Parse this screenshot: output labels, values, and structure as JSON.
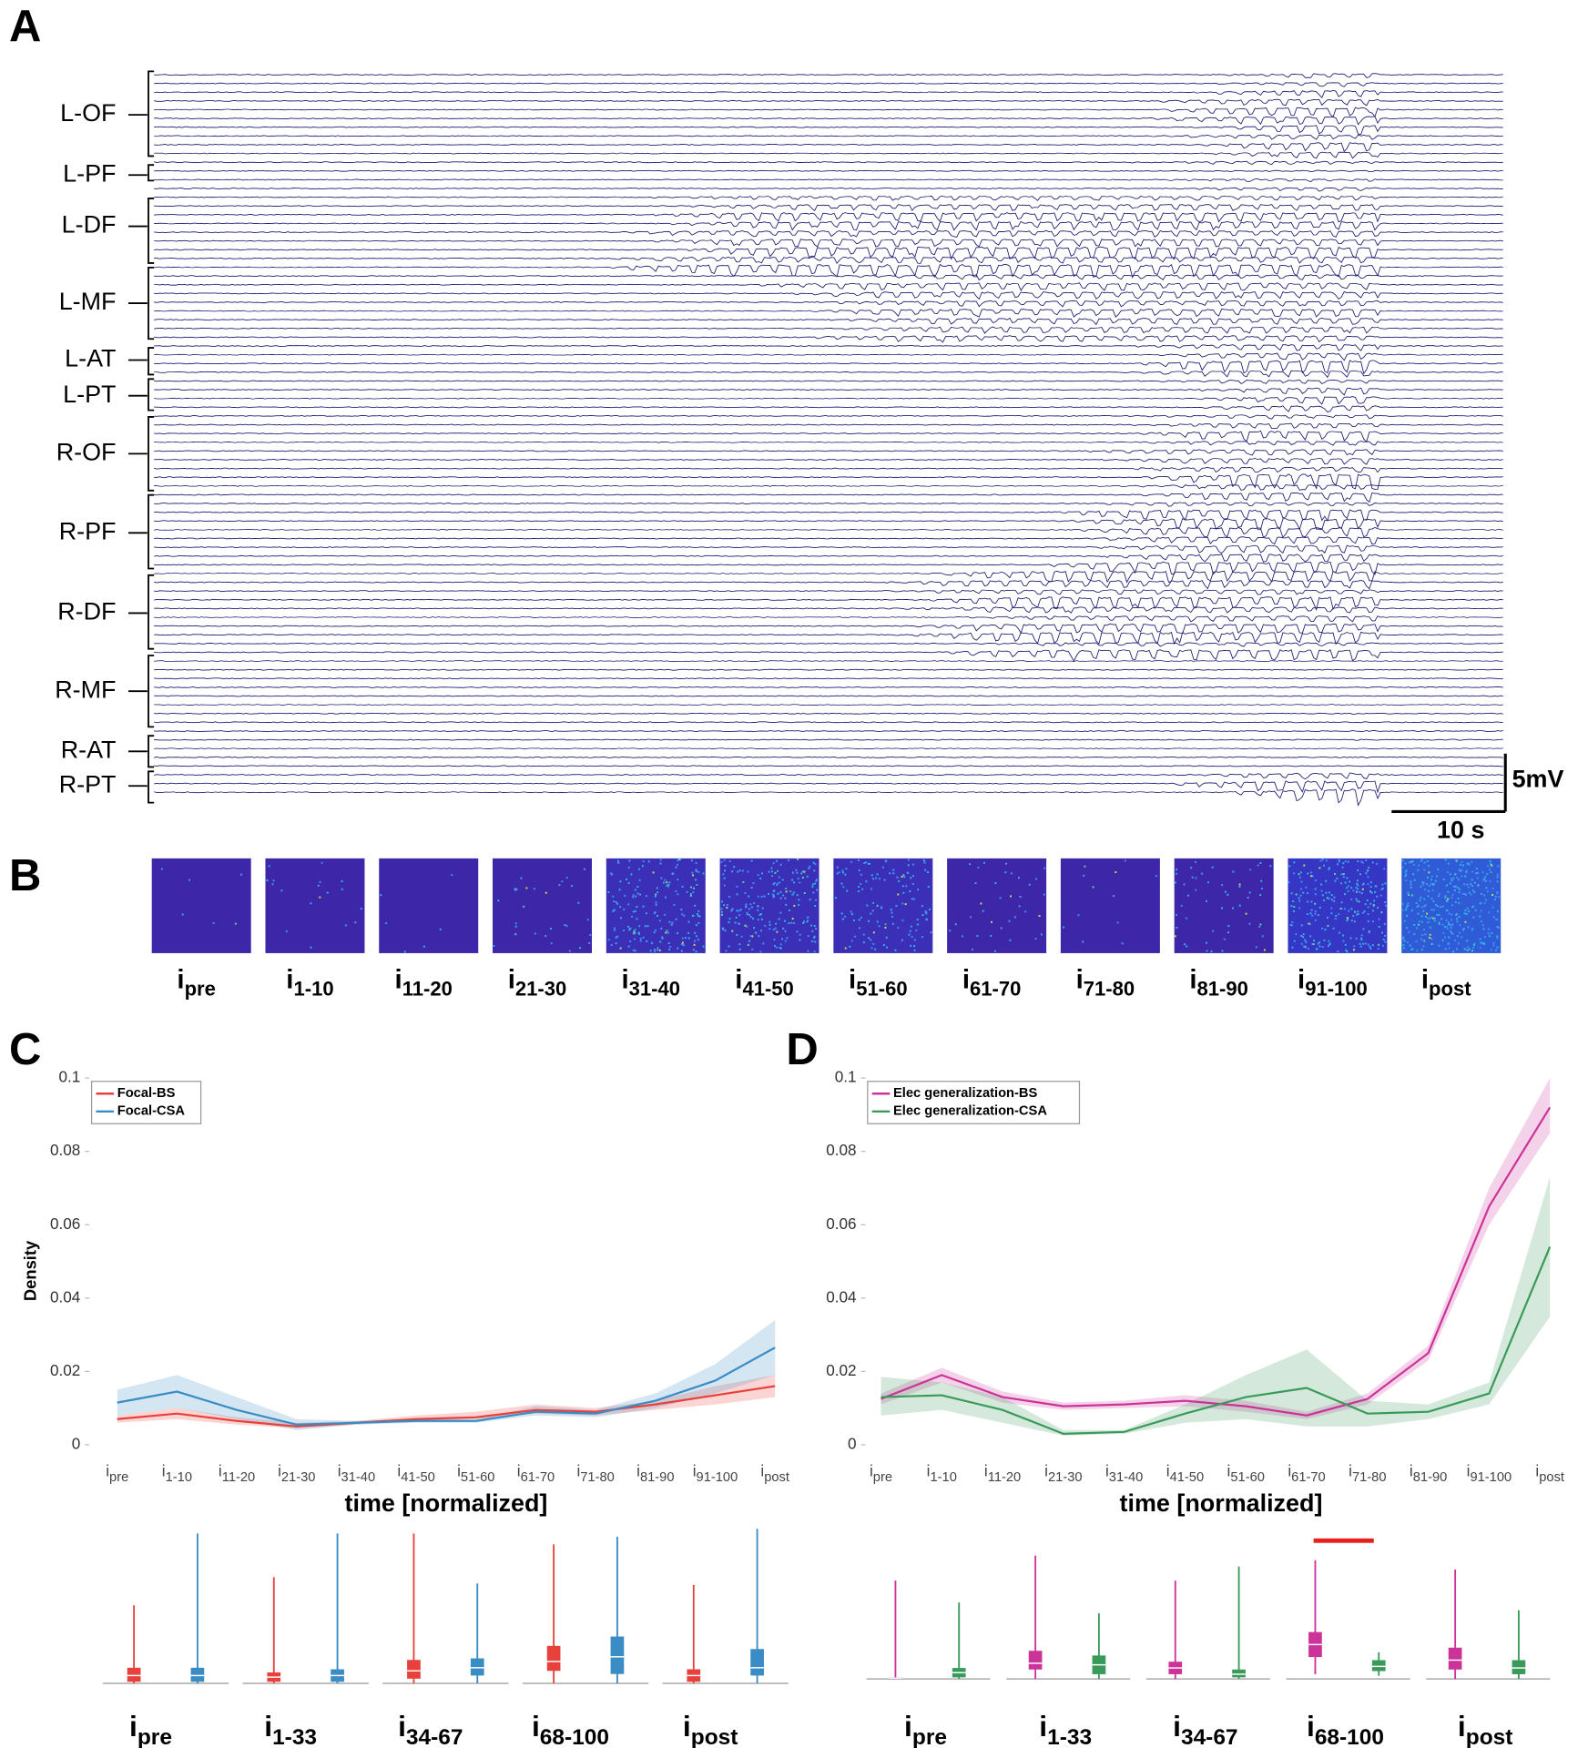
{
  "panel_labels": [
    "A",
    "B",
    "C",
    "D"
  ],
  "panel_a": {
    "groups": [
      "L-OF",
      "L-PF",
      "L-DF",
      "L-MF",
      "L-AT",
      "L-PT",
      "R-OF",
      "R-PF",
      "R-DF",
      "R-MF",
      "R-AT",
      "R-PT"
    ],
    "scale_y": "5mV",
    "scale_x": "10 s"
  },
  "panel_b": {
    "labels": [
      {
        "main": "i",
        "sub": "pre"
      },
      {
        "main": "i",
        "sub": "1-10"
      },
      {
        "main": "i",
        "sub": "11-20"
      },
      {
        "main": "i",
        "sub": "21-30"
      },
      {
        "main": "i",
        "sub": "31-40"
      },
      {
        "main": "i",
        "sub": "41-50"
      },
      {
        "main": "i",
        "sub": "51-60"
      },
      {
        "main": "i",
        "sub": "61-70"
      },
      {
        "main": "i",
        "sub": "71-80"
      },
      {
        "main": "i",
        "sub": "81-90"
      },
      {
        "main": "i",
        "sub": "91-100"
      },
      {
        "main": "i",
        "sub": "post"
      }
    ]
  },
  "chart_data": [
    {
      "type": "line",
      "ylabel": "Density",
      "xlabel": "time [normalized]",
      "categories": [
        {
          "main": "i",
          "sub": "pre"
        },
        {
          "main": "i",
          "sub": "1-10"
        },
        {
          "main": "i",
          "sub": "11-20"
        },
        {
          "main": "i",
          "sub": "21-30"
        },
        {
          "main": "i",
          "sub": "31-40"
        },
        {
          "main": "i",
          "sub": "41-50"
        },
        {
          "main": "i",
          "sub": "51-60"
        },
        {
          "main": "i",
          "sub": "61-70"
        },
        {
          "main": "i",
          "sub": "71-80"
        },
        {
          "main": "i",
          "sub": "81-90"
        },
        {
          "main": "i",
          "sub": "91-100"
        },
        {
          "main": "i",
          "sub": "post"
        }
      ],
      "ylim": [
        0,
        0.1
      ],
      "yticks": [
        0,
        0.02,
        0.04,
        0.06,
        0.08,
        0.1
      ],
      "legend": "upper left",
      "series": [
        {
          "name": "Focal-BS",
          "color": "#e8413b",
          "values": [
            0.007,
            0.0085,
            0.0065,
            0.005,
            0.006,
            0.007,
            0.0075,
            0.0095,
            0.009,
            0.011,
            0.0135,
            0.016
          ],
          "lower": [
            0.006,
            0.007,
            0.0055,
            0.0045,
            0.0055,
            0.0065,
            0.007,
            0.0085,
            0.008,
            0.0095,
            0.011,
            0.013
          ],
          "upper": [
            0.008,
            0.01,
            0.0075,
            0.006,
            0.0065,
            0.008,
            0.009,
            0.011,
            0.01,
            0.012,
            0.016,
            0.019
          ]
        },
        {
          "name": "Focal-CSA",
          "color": "#3a8cc4",
          "values": [
            0.0115,
            0.0145,
            0.0095,
            0.0055,
            0.006,
            0.0065,
            0.0065,
            0.009,
            0.0085,
            0.012,
            0.0175,
            0.0265
          ],
          "lower": [
            0.008,
            0.01,
            0.007,
            0.004,
            0.0055,
            0.006,
            0.006,
            0.008,
            0.0075,
            0.01,
            0.014,
            0.019
          ],
          "upper": [
            0.015,
            0.019,
            0.013,
            0.007,
            0.0065,
            0.007,
            0.007,
            0.0105,
            0.0095,
            0.014,
            0.022,
            0.034
          ]
        }
      ]
    },
    {
      "type": "line",
      "xlabel": "time [normalized]",
      "categories": [
        {
          "main": "i",
          "sub": "pre"
        },
        {
          "main": "i",
          "sub": "1-10"
        },
        {
          "main": "i",
          "sub": "11-20"
        },
        {
          "main": "i",
          "sub": "21-30"
        },
        {
          "main": "i",
          "sub": "31-40"
        },
        {
          "main": "i",
          "sub": "41-50"
        },
        {
          "main": "i",
          "sub": "51-60"
        },
        {
          "main": "i",
          "sub": "61-70"
        },
        {
          "main": "i",
          "sub": "71-80"
        },
        {
          "main": "i",
          "sub": "81-90"
        },
        {
          "main": "i",
          "sub": "91-100"
        },
        {
          "main": "i",
          "sub": "post"
        }
      ],
      "ylim": [
        0,
        0.1
      ],
      "yticks": [
        0,
        0.02,
        0.04,
        0.06,
        0.08,
        0.1
      ],
      "legend": "upper left",
      "series": [
        {
          "name": "Elec generalization-BS",
          "color": "#cc3399",
          "values": [
            0.0125,
            0.019,
            0.013,
            0.0105,
            0.011,
            0.012,
            0.0105,
            0.008,
            0.0125,
            0.025,
            0.065,
            0.092
          ],
          "lower": [
            0.011,
            0.017,
            0.0115,
            0.0095,
            0.01,
            0.0105,
            0.009,
            0.007,
            0.011,
            0.023,
            0.06,
            0.085
          ],
          "upper": [
            0.014,
            0.021,
            0.0145,
            0.0115,
            0.012,
            0.0135,
            0.012,
            0.009,
            0.014,
            0.027,
            0.07,
            0.1
          ]
        },
        {
          "name": "Elec generalization-CSA",
          "color": "#3a9a5a",
          "values": [
            0.013,
            0.0135,
            0.0095,
            0.003,
            0.0035,
            0.0085,
            0.013,
            0.0155,
            0.0085,
            0.009,
            0.014,
            0.054
          ],
          "lower": [
            0.008,
            0.0095,
            0.006,
            0.0025,
            0.003,
            0.006,
            0.007,
            0.005,
            0.005,
            0.007,
            0.011,
            0.035
          ],
          "upper": [
            0.0185,
            0.017,
            0.013,
            0.004,
            0.004,
            0.011,
            0.019,
            0.026,
            0.012,
            0.011,
            0.017,
            0.073
          ]
        }
      ]
    },
    {
      "type": "box",
      "ylim": [
        0,
        1
      ],
      "groups": [
        {
          "main": "i",
          "sub": "pre"
        },
        {
          "main": "i",
          "sub": "1-33"
        },
        {
          "main": "i",
          "sub": "34-67"
        },
        {
          "main": "i",
          "sub": "68-100"
        },
        {
          "main": "i",
          "sub": "post"
        }
      ],
      "series": [
        {
          "color": "#e8413b",
          "boxes": [
            [
              0,
              0.01,
              0.05,
              0.1,
              0.5
            ],
            [
              0,
              0.01,
              0.04,
              0.07,
              0.68
            ],
            [
              0,
              0.03,
              0.08,
              0.15,
              0.96
            ],
            [
              0,
              0.08,
              0.14,
              0.24,
              0.89
            ],
            [
              0,
              0.01,
              0.05,
              0.09,
              0.63
            ]
          ]
        },
        {
          "color": "#3a8cc4",
          "boxes": [
            [
              0,
              0.01,
              0.05,
              0.1,
              0.96
            ],
            [
              0,
              0.01,
              0.05,
              0.09,
              0.96
            ],
            [
              0,
              0.05,
              0.1,
              0.16,
              0.64
            ],
            [
              0,
              0.06,
              0.17,
              0.3,
              0.94
            ],
            [
              0,
              0.05,
              0.1,
              0.22,
              0.99
            ]
          ]
        }
      ]
    },
    {
      "type": "box",
      "ylim": [
        0,
        1
      ],
      "groups": [
        {
          "main": "i",
          "sub": "pre"
        },
        {
          "main": "i",
          "sub": "1-33"
        },
        {
          "main": "i",
          "sub": "34-67"
        },
        {
          "main": "i",
          "sub": "68-100"
        },
        {
          "main": "i",
          "sub": "post"
        }
      ],
      "series": [
        {
          "color": "#cc3399",
          "boxes": [
            [
              0,
              0,
              0.005,
              0.01,
              0.63
            ],
            [
              0,
              0.06,
              0.1,
              0.18,
              0.79
            ],
            [
              0,
              0.03,
              0.07,
              0.11,
              0.63
            ],
            [
              0.03,
              0.14,
              0.22,
              0.3,
              0.76
            ],
            [
              0,
              0.06,
              0.12,
              0.2,
              0.7
            ]
          ]
        },
        {
          "color": "#3a9a5a",
          "boxes": [
            [
              0,
              0.01,
              0.04,
              0.07,
              0.49
            ],
            [
              0,
              0.03,
              0.09,
              0.15,
              0.42
            ],
            [
              0,
              0.01,
              0.03,
              0.06,
              0.72
            ],
            [
              0.02,
              0.05,
              0.08,
              0.12,
              0.17
            ],
            [
              0,
              0.03,
              0.07,
              0.12,
              0.44
            ]
          ]
        }
      ]
    }
  ]
}
